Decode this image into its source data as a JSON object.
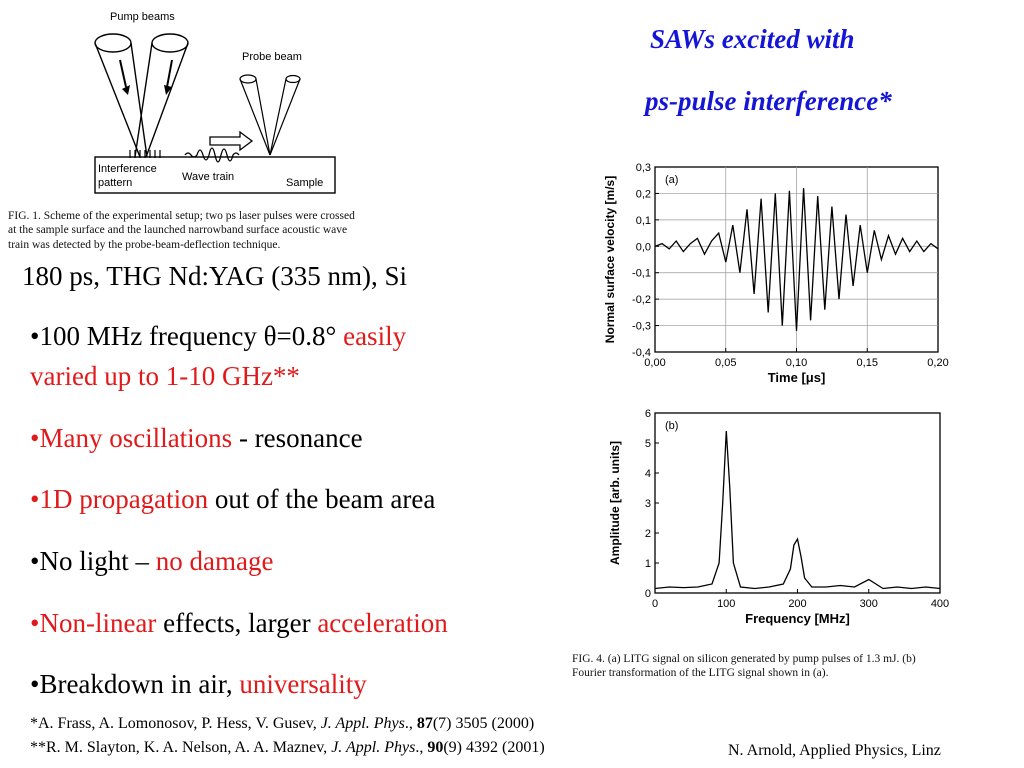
{
  "title": {
    "line1": "SAWs excited with",
    "line2": "ps-pulse interference*"
  },
  "setup_figure": {
    "labels": {
      "pump": "Pump beams",
      "probe": "Probe beam",
      "interference": "Interference",
      "pattern": "pattern",
      "wave_train": "Wave train",
      "sample": "Sample"
    },
    "caption": [
      "FIG. 1. Scheme of the experimental setup; two ps laser pulses were crossed",
      "at the sample surface and the launched narrowband surface acoustic wave",
      "train was detected by the probe-beam-deflection technique."
    ]
  },
  "conditions": "180 ps, THG Nd:YAG (335 nm), Si",
  "bullets": [
    {
      "parts": [
        {
          "t": "•100 MHz frequency  θ=0.8° ",
          "c": "black"
        },
        {
          "t": "easily",
          "c": "red"
        }
      ],
      "line2": {
        "t": "varied up to 1-10 GHz**",
        "c": "red"
      }
    },
    {
      "parts": [
        {
          "t": "•Many oscillations",
          "c": "red"
        },
        {
          "t": " - resonance",
          "c": "black"
        }
      ]
    },
    {
      "parts": [
        {
          "t": "•1D propagation",
          "c": "red"
        },
        {
          "t": " out of the beam area",
          "c": "black"
        }
      ]
    },
    {
      "parts": [
        {
          "t": "•No light – ",
          "c": "black"
        },
        {
          "t": "no damage",
          "c": "red"
        }
      ]
    },
    {
      "parts": [
        {
          "t": "•Non-linear",
          "c": "red"
        },
        {
          "t": " effects, larger ",
          "c": "black"
        },
        {
          "t": "acceleration",
          "c": "red"
        }
      ]
    },
    {
      "parts": [
        {
          "t": "•Breakdown in air, ",
          "c": "black"
        },
        {
          "t": "universality",
          "c": "red"
        }
      ]
    }
  ],
  "references": {
    "ref1": {
      "pre": "*A. Frass, A. Lomonosov, P. Hess, V. Gusev, ",
      "journal": "J. Appl. Phys",
      "mid": "., ",
      "vol": "87",
      "post": "(7) 3505 (2000)"
    },
    "ref2": {
      "pre": "**R. M. Slayton, K. A. Nelson, A. A. Maznev, ",
      "journal": "J. Appl. Phys",
      "mid": "., ",
      "vol": "90",
      "post": "(9) 4392 (2001)"
    }
  },
  "footer": "N. Arnold, Applied Physics, Linz",
  "fig4_caption": [
    "FIG. 4.  (a) LITG signal on silicon generated by pump pulses of 1.3 mJ. (b)",
    "Fourier transformation of the LITG signal shown in (a)."
  ],
  "chart_data": [
    {
      "type": "line",
      "panel_label": "(a)",
      "xlabel": "Time [μs]",
      "ylabel": "Normal surface velocity [m/s]",
      "xlim": [
        0,
        0.2
      ],
      "ylim": [
        -0.4,
        0.3
      ],
      "xticks": [
        "0,00",
        "0,05",
        "0,10",
        "0,15",
        "0,20"
      ],
      "yticks": [
        "0,3",
        "0,2",
        "0,1",
        "0,0",
        "-0,1",
        "-0,2",
        "-0,3",
        "-0,4"
      ],
      "grid": true,
      "series": [
        {
          "x": [
            0.0,
            0.005,
            0.01,
            0.015,
            0.02,
            0.025,
            0.03,
            0.035,
            0.04,
            0.045,
            0.05,
            0.055,
            0.06,
            0.065,
            0.07,
            0.075,
            0.08,
            0.085,
            0.09,
            0.095,
            0.1,
            0.105,
            0.11,
            0.115,
            0.12,
            0.125,
            0.13,
            0.135,
            0.14,
            0.145,
            0.15,
            0.155,
            0.16,
            0.165,
            0.17,
            0.175,
            0.18,
            0.185,
            0.19,
            0.195,
            0.2
          ],
          "y": [
            0.0,
            0.01,
            -0.01,
            0.02,
            -0.02,
            0.01,
            0.03,
            -0.03,
            0.02,
            0.05,
            -0.06,
            0.08,
            -0.1,
            0.14,
            -0.18,
            0.18,
            -0.25,
            0.2,
            -0.3,
            0.21,
            -0.32,
            0.22,
            -0.28,
            0.19,
            -0.24,
            0.15,
            -0.2,
            0.12,
            -0.15,
            0.08,
            -0.1,
            0.06,
            -0.05,
            0.04,
            -0.03,
            0.03,
            -0.02,
            0.02,
            -0.02,
            0.01,
            -0.01
          ]
        }
      ]
    },
    {
      "type": "line",
      "panel_label": "(b)",
      "xlabel": "Frequency [MHz]",
      "ylabel": "Amplitude [arb. units]",
      "xlim": [
        0,
        400
      ],
      "ylim": [
        0,
        6
      ],
      "xticks": [
        "0",
        "100",
        "200",
        "300",
        "400"
      ],
      "yticks": [
        "6",
        "5",
        "4",
        "3",
        "2",
        "1",
        "0"
      ],
      "grid": false,
      "series": [
        {
          "x": [
            0,
            20,
            40,
            60,
            80,
            90,
            95,
            100,
            105,
            110,
            120,
            140,
            160,
            180,
            190,
            195,
            200,
            205,
            210,
            220,
            240,
            260,
            280,
            300,
            320,
            340,
            360,
            380,
            400
          ],
          "y": [
            0.15,
            0.2,
            0.18,
            0.2,
            0.3,
            1.0,
            3.0,
            5.4,
            3.5,
            1.0,
            0.2,
            0.15,
            0.2,
            0.3,
            0.8,
            1.6,
            1.8,
            1.2,
            0.5,
            0.2,
            0.2,
            0.25,
            0.2,
            0.45,
            0.15,
            0.2,
            0.15,
            0.2,
            0.15
          ]
        }
      ]
    }
  ]
}
